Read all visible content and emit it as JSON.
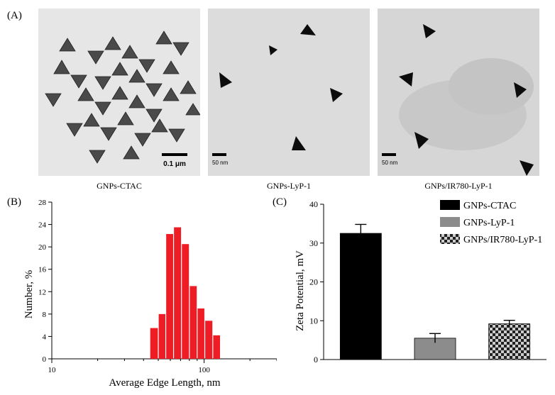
{
  "panels": {
    "a_label": "(A)",
    "b_label": "(B)",
    "c_label": "(C)"
  },
  "tem_images": [
    {
      "caption": "GNPs-CTAC",
      "scale_bar": "0.1 μm"
    },
    {
      "caption": "GNPs-LyP-1",
      "scale_bar": "50 nm"
    },
    {
      "caption": "GNPs/IR780-LyP-1",
      "scale_bar": "50 nm"
    }
  ],
  "colors": {
    "histogram_bar": "#ee1c24",
    "ctac_bar": "#000000",
    "lyp1_bar": "#8c8c8c",
    "ir780_bar_check_dark": "#222222",
    "ir780_bar_check_light": "#cccccc"
  },
  "chart_data": [
    {
      "type": "bar",
      "subtype": "histogram",
      "xscale": "log",
      "xlabel": "Average Edge Length, nm",
      "ylabel": "Number, %",
      "xlim": [
        10,
        300
      ],
      "ylim": [
        0,
        28
      ],
      "xticks": [
        "10",
        "100"
      ],
      "yticks": [
        "0",
        "4",
        "8",
        "12",
        "16",
        "20",
        "24",
        "28"
      ],
      "bins": [
        {
          "x0": 44,
          "x1": 50,
          "value": 5.5
        },
        {
          "x0": 50,
          "x1": 56,
          "value": 8.0
        },
        {
          "x0": 56,
          "x1": 63,
          "value": 22.3
        },
        {
          "x0": 63,
          "x1": 71,
          "value": 23.5
        },
        {
          "x0": 71,
          "x1": 80,
          "value": 20.5
        },
        {
          "x0": 80,
          "x1": 90,
          "value": 13.0
        },
        {
          "x0": 90,
          "x1": 101,
          "value": 9.0
        },
        {
          "x0": 101,
          "x1": 114,
          "value": 6.8
        },
        {
          "x0": 114,
          "x1": 128,
          "value": 4.2
        }
      ]
    },
    {
      "type": "bar",
      "categories": [
        "GNPs-CTAC",
        "GNPs-LyP-1",
        "GNPs/IR780-LyP-1"
      ],
      "values": [
        32.5,
        5.5,
        9.2
      ],
      "errors": [
        2.3,
        1.2,
        0.9
      ],
      "ylabel": "Zeta Potential, mV",
      "ylim": [
        0,
        40
      ],
      "yticks": [
        "0",
        "10",
        "20",
        "30",
        "40"
      ],
      "legend": {
        "position": "top-right",
        "entries": [
          "GNPs-CTAC",
          "GNPs-LyP-1",
          "GNPs/IR780-LyP-1"
        ]
      }
    }
  ]
}
